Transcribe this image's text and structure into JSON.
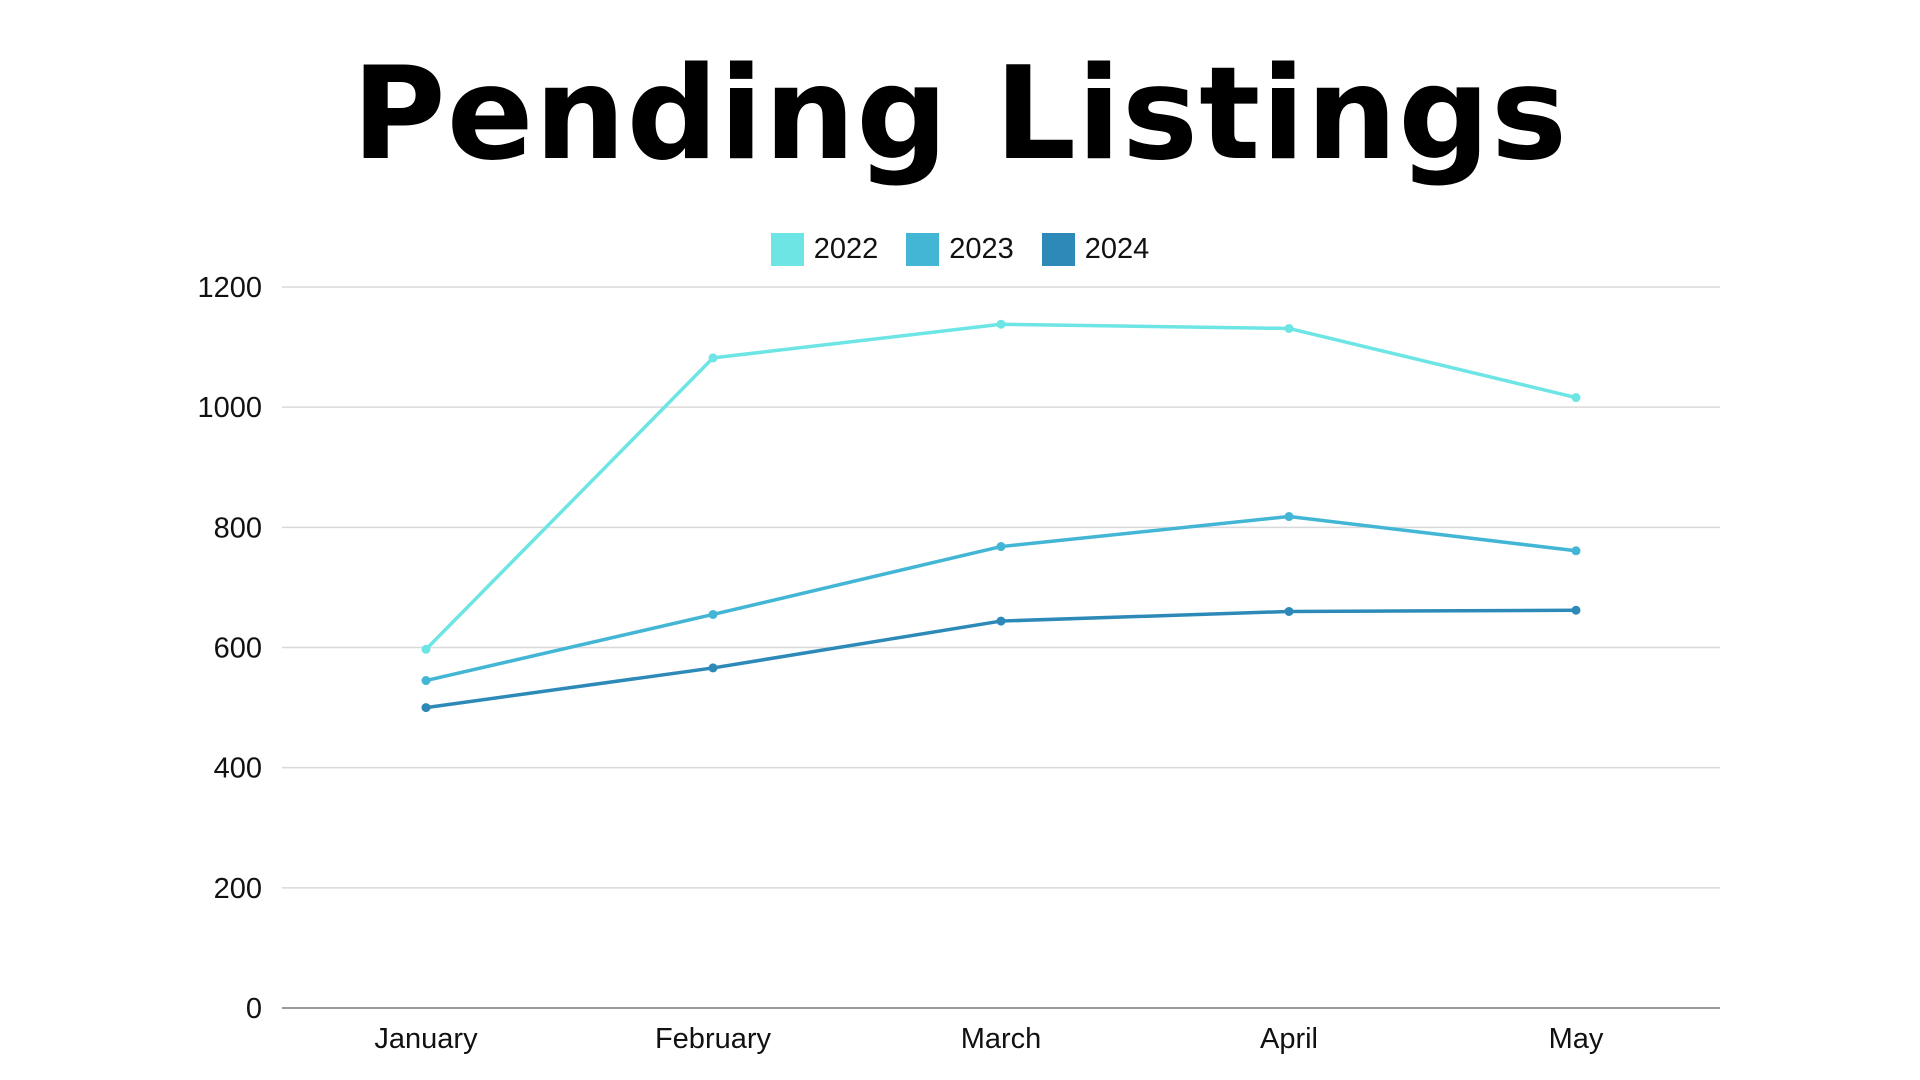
{
  "chart_data": {
    "type": "line",
    "title": "Pending Listings",
    "categories": [
      "January",
      "February",
      "March",
      "April",
      "May"
    ],
    "series": [
      {
        "name": "2022",
        "color": "#6ce5e4",
        "values": [
          597,
          1082,
          1138,
          1131,
          1016
        ]
      },
      {
        "name": "2023",
        "color": "#42b6d4",
        "values": [
          545,
          655,
          768,
          818,
          761
        ]
      },
      {
        "name": "2024",
        "color": "#2d8ab8",
        "values": [
          500,
          566,
          644,
          660,
          662
        ]
      }
    ],
    "yticks": [
      "0",
      "200",
      "400",
      "600",
      "800",
      "1000",
      "1200"
    ],
    "ylim": [
      0,
      1200
    ],
    "grid": true,
    "legend_position": "top-center",
    "xlabel": "",
    "ylabel": ""
  }
}
